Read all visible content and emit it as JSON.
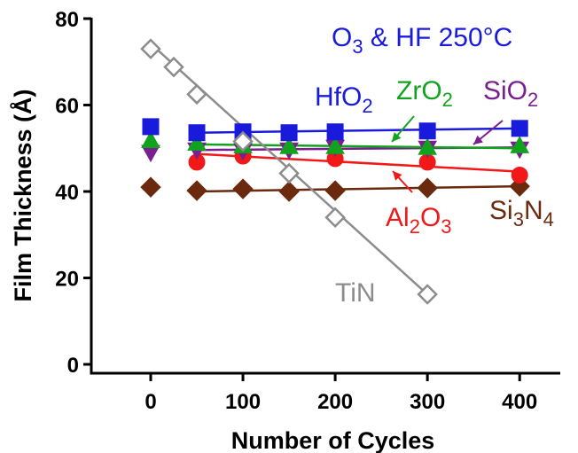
{
  "chart_data": {
    "type": "scatter",
    "title": "",
    "xlabel": "Number of Cycles",
    "ylabel": "Film Thickness (Å)",
    "xlim": [
      -40,
      450
    ],
    "ylim": [
      -2,
      82
    ],
    "xticks": [
      0,
      100,
      200,
      300,
      400
    ],
    "yticks": [
      0,
      20,
      40,
      60,
      80
    ],
    "grid": false,
    "legend": "none",
    "annotations": {
      "condition": {
        "main": "O",
        "sub": "3",
        "rest": " & HF 250°C",
        "color": "#1a1adc"
      }
    },
    "series": [
      {
        "name": "HfO2",
        "label_main": "HfO",
        "label_sub": "2",
        "color": "#1a1adc",
        "marker": "square",
        "filled": true,
        "x": [
          0,
          50,
          100,
          150,
          200,
          300,
          400
        ],
        "y": [
          55.0,
          53.6,
          53.8,
          53.6,
          53.8,
          54.0,
          54.6
        ],
        "fit": [
          [
            50,
            53.6
          ],
          [
            400,
            54.6
          ]
        ]
      },
      {
        "name": "ZrO2",
        "label_main": "ZrO",
        "label_sub": "2",
        "color": "#12a31e",
        "marker": "triangle-up",
        "filled": true,
        "x": [
          0,
          50,
          100,
          150,
          200,
          300,
          400
        ],
        "y": [
          51.8,
          51.2,
          50.6,
          50.4,
          50.4,
          50.2,
          50.6
        ],
        "fit": [
          [
            50,
            50.9
          ],
          [
            400,
            50.0
          ]
        ]
      },
      {
        "name": "SiO2",
        "label_main": "SiO",
        "label_sub": "2",
        "color": "#7a1f8f",
        "marker": "triangle-down",
        "filled": true,
        "x": [
          0,
          50,
          100,
          150,
          200,
          300,
          400
        ],
        "y": [
          49.0,
          49.6,
          49.4,
          49.6,
          50.2,
          50.0,
          49.8
        ],
        "fit": [
          [
            50,
            49.6
          ],
          [
            400,
            50.2
          ]
        ]
      },
      {
        "name": "Al2O3",
        "label_main": "Al",
        "label_sub": "2",
        "label_main2": "O",
        "label_sub2": "3",
        "color": "#f01818",
        "marker": "circle",
        "filled": true,
        "x": [
          50,
          100,
          200,
          300,
          400
        ],
        "y": [
          46.8,
          48.2,
          47.6,
          46.8,
          43.8
        ],
        "fit": [
          [
            50,
            48.7
          ],
          [
            400,
            44.6
          ]
        ]
      },
      {
        "name": "Si3N4",
        "label_main": "Si",
        "label_sub": "3",
        "label_main2": "N",
        "label_sub2": "4",
        "color": "#6b2a0e",
        "marker": "diamond",
        "filled": true,
        "x": [
          0,
          50,
          100,
          150,
          200,
          300,
          400
        ],
        "y": [
          41.0,
          40.2,
          40.6,
          40.0,
          40.2,
          40.8,
          41.2
        ],
        "fit": [
          [
            50,
            40.0
          ],
          [
            400,
            41.2
          ]
        ]
      },
      {
        "name": "TiN",
        "label_main": "TiN",
        "color": "#8c8c8c",
        "marker": "diamond",
        "filled": false,
        "x": [
          0,
          25,
          50,
          100,
          150,
          200,
          300
        ],
        "y": [
          73.0,
          68.8,
          62.5,
          51.6,
          44.2,
          34.0,
          16.2
        ],
        "fit": [
          [
            0,
            74.2
          ],
          [
            300,
            16.2
          ]
        ]
      }
    ]
  }
}
